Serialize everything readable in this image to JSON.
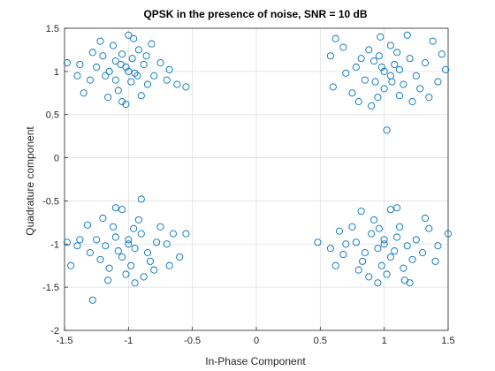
{
  "chart_data": {
    "type": "scatter",
    "title": "QPSK in the presence of noise, SNR = 10 dB",
    "xlabel": "In-Phase Component",
    "ylabel": "Quadrature component",
    "xlim": [
      -1.5,
      1.5
    ],
    "ylim": [
      -2,
      1.5
    ],
    "xticks": [
      -1.5,
      -1,
      -0.5,
      0,
      0.5,
      1,
      1.5
    ],
    "yticks": [
      -2,
      -1.5,
      -1,
      -0.5,
      0,
      0.5,
      1,
      1.5
    ],
    "xtick_labels": [
      "-1.5",
      "-1",
      "-0.5",
      "0",
      "0.5",
      "1",
      "1.5"
    ],
    "ytick_labels": [
      "-2",
      "-1.5",
      "-1",
      "-0.5",
      "0",
      "0.5",
      "1",
      "1.5"
    ],
    "grid": true,
    "marker": "open-circle",
    "series": [
      {
        "color": "#0072BD",
        "points": [
          [
            -1.02,
            1.05
          ],
          [
            -0.95,
            0.98
          ],
          [
            -1.1,
            1.12
          ],
          [
            -1.18,
            0.95
          ],
          [
            -0.88,
            1.08
          ],
          [
            -1.05,
            1.2
          ],
          [
            -0.98,
            0.88
          ],
          [
            -1.25,
            1.05
          ],
          [
            -0.8,
            0.95
          ],
          [
            -1.08,
            0.78
          ],
          [
            -1.12,
            1.3
          ],
          [
            -0.92,
            1.25
          ],
          [
            -1.3,
            0.9
          ],
          [
            -0.75,
            1.1
          ],
          [
            -1.0,
            1.0
          ],
          [
            -1.15,
            1.0
          ],
          [
            -0.85,
            0.85
          ],
          [
            -1.2,
            1.18
          ],
          [
            -0.96,
            1.38
          ],
          [
            -1.05,
            0.65
          ],
          [
            -1.38,
            1.08
          ],
          [
            -0.68,
            1.02
          ],
          [
            -0.55,
            0.82
          ],
          [
            -0.62,
            0.85
          ],
          [
            -1.48,
            1.1
          ],
          [
            -1.35,
            0.75
          ],
          [
            -0.9,
            0.72
          ],
          [
            -1.1,
            0.9
          ],
          [
            -0.97,
            1.15
          ],
          [
            -1.06,
            1.08
          ],
          [
            -1.02,
            0.62
          ],
          [
            -0.82,
            1.32
          ],
          [
            -1.22,
            1.35
          ],
          [
            -1.4,
            0.95
          ],
          [
            -0.7,
            0.9
          ],
          [
            -1.0,
            1.42
          ],
          [
            -1.16,
            0.7
          ],
          [
            -0.86,
            1.18
          ],
          [
            -1.28,
            1.22
          ],
          [
            -0.93,
            0.95
          ],
          [
            0.98,
            1.05
          ],
          [
            1.05,
            0.95
          ],
          [
            0.92,
            1.12
          ],
          [
            1.12,
            1.02
          ],
          [
            0.85,
            0.9
          ],
          [
            1.2,
            1.15
          ],
          [
            1.0,
            0.8
          ],
          [
            0.88,
            1.25
          ],
          [
            1.15,
            0.85
          ],
          [
            0.78,
            1.05
          ],
          [
            1.25,
            0.95
          ],
          [
            1.05,
            1.3
          ],
          [
            0.95,
            0.7
          ],
          [
            1.32,
            1.1
          ],
          [
            0.7,
            0.98
          ],
          [
            1.1,
            1.22
          ],
          [
            1.02,
            0.32
          ],
          [
            0.62,
            1.38
          ],
          [
            1.45,
            1.2
          ],
          [
            0.75,
            0.75
          ],
          [
            0.6,
            0.82
          ],
          [
            0.58,
            1.18
          ],
          [
            1.38,
            1.35
          ],
          [
            1.18,
            1.42
          ],
          [
            1.0,
            1.0
          ],
          [
            0.93,
            0.88
          ],
          [
            1.08,
            1.08
          ],
          [
            0.82,
            1.15
          ],
          [
            1.28,
            0.8
          ],
          [
            1.42,
            0.88
          ],
          [
            0.68,
            1.28
          ],
          [
            1.22,
            0.65
          ],
          [
            0.97,
            1.4
          ],
          [
            0.9,
            0.6
          ],
          [
            1.12,
            0.72
          ],
          [
            0.8,
            0.65
          ],
          [
            1.48,
            1.02
          ],
          [
            1.35,
            0.7
          ],
          [
            0.96,
            1.18
          ],
          [
            1.06,
            0.88
          ],
          [
            -1.0,
            -0.95
          ],
          [
            -0.95,
            -1.05
          ],
          [
            -1.1,
            -0.92
          ],
          [
            -1.05,
            -1.15
          ],
          [
            -0.9,
            -0.88
          ],
          [
            -1.18,
            -1.02
          ],
          [
            -0.85,
            -1.1
          ],
          [
            -1.12,
            -0.8
          ],
          [
            -0.98,
            -1.25
          ],
          [
            -1.25,
            -0.95
          ],
          [
            -0.78,
            -0.98
          ],
          [
            -1.02,
            -1.35
          ],
          [
            -0.92,
            -0.72
          ],
          [
            -1.3,
            -1.1
          ],
          [
            -0.7,
            -1.0
          ],
          [
            -1.15,
            -1.28
          ],
          [
            -0.9,
            -0.48
          ],
          [
            -1.28,
            -1.65
          ],
          [
            -1.45,
            -1.25
          ],
          [
            -0.55,
            -0.88
          ],
          [
            -0.6,
            -1.15
          ],
          [
            -1.38,
            -0.95
          ],
          [
            -0.68,
            -1.25
          ],
          [
            -1.2,
            -0.7
          ],
          [
            -1.0,
            -1.0
          ],
          [
            -0.96,
            -0.82
          ],
          [
            -1.08,
            -1.08
          ],
          [
            -0.83,
            -1.2
          ],
          [
            -1.22,
            -1.18
          ],
          [
            -1.4,
            -1.02
          ],
          [
            -0.75,
            -0.8
          ],
          [
            -1.05,
            -0.6
          ],
          [
            -0.88,
            -1.38
          ],
          [
            -1.16,
            -1.42
          ],
          [
            -1.32,
            -0.78
          ],
          [
            -0.65,
            -0.88
          ],
          [
            -1.48,
            -0.98
          ],
          [
            -0.95,
            -1.45
          ],
          [
            -1.1,
            -0.58
          ],
          [
            -0.8,
            -1.3
          ],
          [
            1.0,
            -0.95
          ],
          [
            0.95,
            -1.05
          ],
          [
            1.1,
            -0.92
          ],
          [
            1.05,
            -1.15
          ],
          [
            0.9,
            -0.88
          ],
          [
            1.18,
            -1.02
          ],
          [
            0.85,
            -1.1
          ],
          [
            1.12,
            -0.8
          ],
          [
            0.98,
            -1.25
          ],
          [
            1.25,
            -0.95
          ],
          [
            0.78,
            -0.98
          ],
          [
            1.02,
            -1.35
          ],
          [
            0.92,
            -0.72
          ],
          [
            1.3,
            -1.1
          ],
          [
            0.7,
            -1.0
          ],
          [
            1.15,
            -1.28
          ],
          [
            0.48,
            -0.98
          ],
          [
            0.62,
            -1.25
          ],
          [
            1.5,
            -0.88
          ],
          [
            0.82,
            -0.62
          ],
          [
            1.4,
            -1.2
          ],
          [
            0.65,
            -0.85
          ],
          [
            1.32,
            -0.7
          ],
          [
            1.2,
            -1.45
          ],
          [
            1.0,
            -1.0
          ],
          [
            0.96,
            -0.82
          ],
          [
            1.08,
            -1.08
          ],
          [
            0.83,
            -1.2
          ],
          [
            1.22,
            -1.18
          ],
          [
            1.42,
            -1.02
          ],
          [
            0.75,
            -0.8
          ],
          [
            1.05,
            -0.6
          ],
          [
            0.88,
            -1.38
          ],
          [
            1.16,
            -1.42
          ],
          [
            0.68,
            -1.12
          ],
          [
            1.35,
            -0.82
          ],
          [
            0.58,
            -1.05
          ],
          [
            0.95,
            -1.45
          ],
          [
            1.1,
            -0.58
          ],
          [
            0.8,
            -1.3
          ]
        ]
      }
    ]
  }
}
